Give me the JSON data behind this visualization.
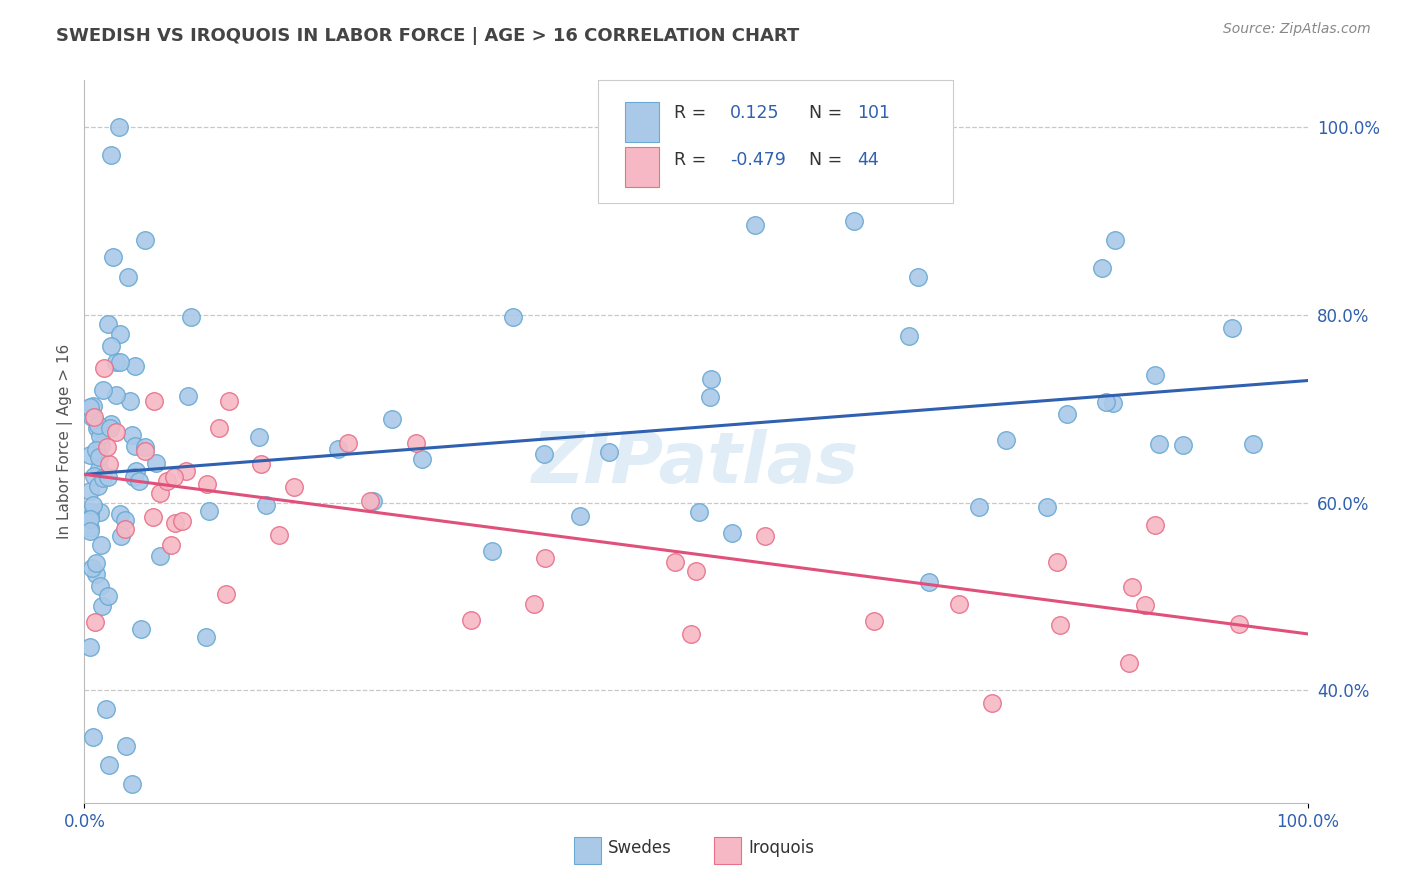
{
  "title": "SWEDISH VS IROQUOIS IN LABOR FORCE | AGE > 16 CORRELATION CHART",
  "source_text": "Source: ZipAtlas.com",
  "ylabel": "In Labor Force | Age > 16",
  "x_min": 0.0,
  "x_max": 1.0,
  "y_min": 0.28,
  "y_max": 1.05,
  "x_tick_labels": [
    "0.0%",
    "100.0%"
  ],
  "y_tick_labels": [
    "40.0%",
    "60.0%",
    "80.0%",
    "100.0%"
  ],
  "y_ticks": [
    0.4,
    0.6,
    0.8,
    1.0
  ],
  "swedes_fill": "#aac9e8",
  "swedes_edge": "#6aaad4",
  "iroquois_fill": "#f5b8c4",
  "iroquois_edge": "#e8708a",
  "trend_blue": "#3060b0",
  "trend_pink": "#e0507a",
  "legend_text_color": "#3060b0",
  "R_swedes": 0.125,
  "N_swedes": 101,
  "R_iroquois": -0.479,
  "N_iroquois": 44,
  "watermark": "ZIPatlas",
  "background_color": "#ffffff",
  "grid_color": "#c8c8c8",
  "title_color": "#444444",
  "source_color": "#888888"
}
